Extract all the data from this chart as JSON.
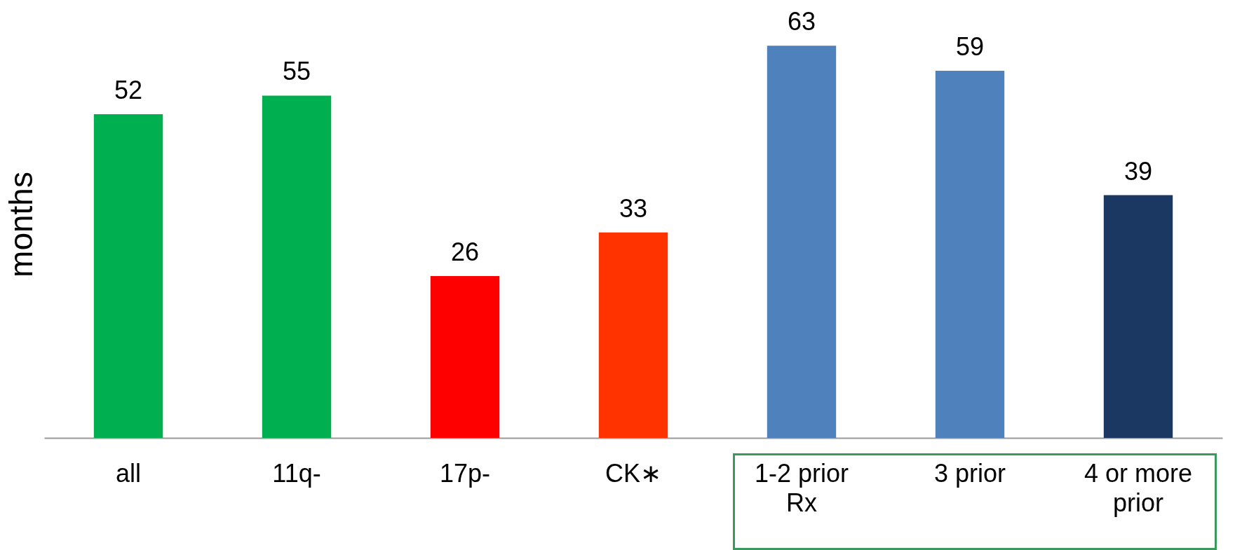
{
  "chart_data": {
    "type": "bar",
    "ylabel": "months",
    "categories": [
      "all",
      "11q-",
      "17p-",
      "CK∗",
      "1-2 prior Rx",
      "3 prior",
      "4 or more prior"
    ],
    "values": [
      52,
      55,
      26,
      33,
      63,
      59,
      39
    ],
    "colors": [
      "#00b050",
      "#00b050",
      "#ff0000",
      "#ff3300",
      "#4f81bd",
      "#4f81bd",
      "#1b3862"
    ],
    "data_labels": true,
    "tick_labels": "x"
  }
}
